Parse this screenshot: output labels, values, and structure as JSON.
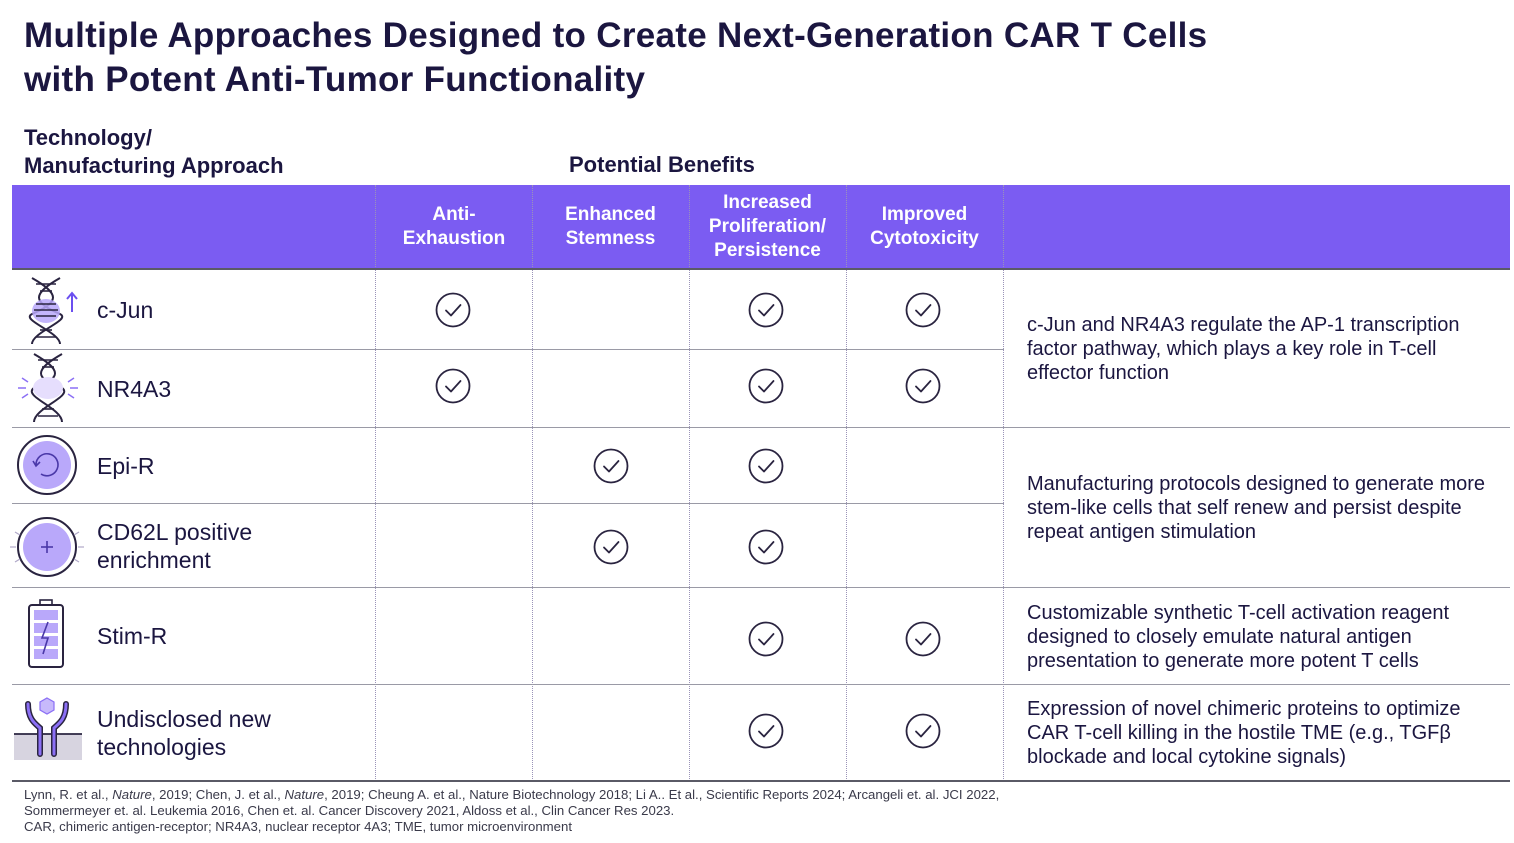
{
  "title": {
    "line1": "Multiple Approaches Designed to Create Next-Generation CAR T Cells",
    "line2": "with Potent Anti-Tumor Functionality"
  },
  "table_header": {
    "approach_line1": "Technology/",
    "approach_line2": "Manufacturing Approach",
    "benefits": "Potential Benefits",
    "columns": [
      {
        "line1": "Anti-",
        "line2": "Exhaustion",
        "line3": ""
      },
      {
        "line1": "Enhanced",
        "line2": "Stemness",
        "line3": ""
      },
      {
        "line1": "Increased",
        "line2": "Proliferation/",
        "line3": "Persistence"
      },
      {
        "line1": "Improved",
        "line2": "Cytotoxicity",
        "line3": ""
      }
    ]
  },
  "rows": [
    {
      "line1": "c-Jun",
      "line2": "",
      "icon": "dna-up-arrow-icon",
      "checks": [
        true,
        false,
        true,
        true
      ]
    },
    {
      "line1": "NR4A3",
      "line2": "",
      "icon": "dna-burst-icon",
      "checks": [
        true,
        false,
        true,
        true
      ]
    },
    {
      "line1": "Epi-R",
      "line2": "",
      "icon": "refresh-cell-icon",
      "checks": [
        false,
        true,
        true,
        false
      ]
    },
    {
      "line1": "CD62L positive",
      "line2": "enrichment",
      "icon": "plus-cell-icon",
      "checks": [
        false,
        true,
        true,
        false
      ]
    },
    {
      "line1": "Stim-R",
      "line2": "",
      "icon": "battery-bolt-icon",
      "checks": [
        false,
        false,
        true,
        true
      ]
    },
    {
      "line1": "Undisclosed new",
      "line2": "technologies",
      "icon": "receptor-icon",
      "checks": [
        false,
        false,
        true,
        true
      ]
    }
  ],
  "descriptions": [
    "c-Jun and NR4A3 regulate the AP-1 transcription factor pathway, which plays a key role in T-cell effector function",
    "Manufacturing protocols designed to generate more stem-like cells that self renew and persist despite repeat antigen stimulation",
    "Customizable synthetic T-cell activation reagent designed to closely emulate natural antigen presentation to generate more potent T cells",
    "Expression of novel chimeric proteins to optimize CAR T-cell killing in the hostile TME (e.g., TGFβ blockade and local cytokine signals)"
  ],
  "references": {
    "line1_a": "Lynn, R. et al., ",
    "line1_b": "Nature",
    "line1_c": ", 2019; Chen, J. et al., ",
    "line1_d": "Nature",
    "line1_e": ", 2019; Cheung A. et al., Nature Biotechnology 2018; Li A.. Et al., Scientific Reports 2024; Arcangeli et. al. JCI 2022,",
    "line2": "Sommermeyer et. al. Leukemia 2016, Chen et. al. Cancer Discovery 2021, Aldoss et al., Clin Cancer Res 2023.",
    "line3": "CAR, chimeric antigen-receptor; NR4A3, nuclear receptor 4A3; TME, tumor microenvironment"
  },
  "colors": {
    "header_band": "#7b5cf2",
    "icon_accent": "#8b6ff5",
    "text": "#1b1640"
  }
}
